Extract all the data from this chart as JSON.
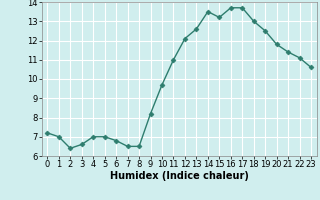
{
  "x": [
    0,
    1,
    2,
    3,
    4,
    5,
    6,
    7,
    8,
    9,
    10,
    11,
    12,
    13,
    14,
    15,
    16,
    17,
    18,
    19,
    20,
    21,
    22,
    23
  ],
  "y": [
    7.2,
    7.0,
    6.4,
    6.6,
    7.0,
    7.0,
    6.8,
    6.5,
    6.5,
    8.2,
    9.7,
    11.0,
    12.1,
    12.6,
    13.5,
    13.2,
    13.7,
    13.7,
    13.0,
    12.5,
    11.8,
    11.4,
    11.1,
    10.6
  ],
  "line_color": "#2e7d6e",
  "marker": "D",
  "marker_size": 2.5,
  "bg_color": "#d0eeee",
  "grid_color": "#ffffff",
  "xlabel": "Humidex (Indice chaleur)",
  "xlim": [
    -0.5,
    23.5
  ],
  "ylim": [
    6,
    14
  ],
  "yticks": [
    6,
    7,
    8,
    9,
    10,
    11,
    12,
    13,
    14
  ],
  "xticks": [
    0,
    1,
    2,
    3,
    4,
    5,
    6,
    7,
    8,
    9,
    10,
    11,
    12,
    13,
    14,
    15,
    16,
    17,
    18,
    19,
    20,
    21,
    22,
    23
  ],
  "xlabel_fontsize": 7,
  "tick_fontsize": 6,
  "line_width": 1.0
}
